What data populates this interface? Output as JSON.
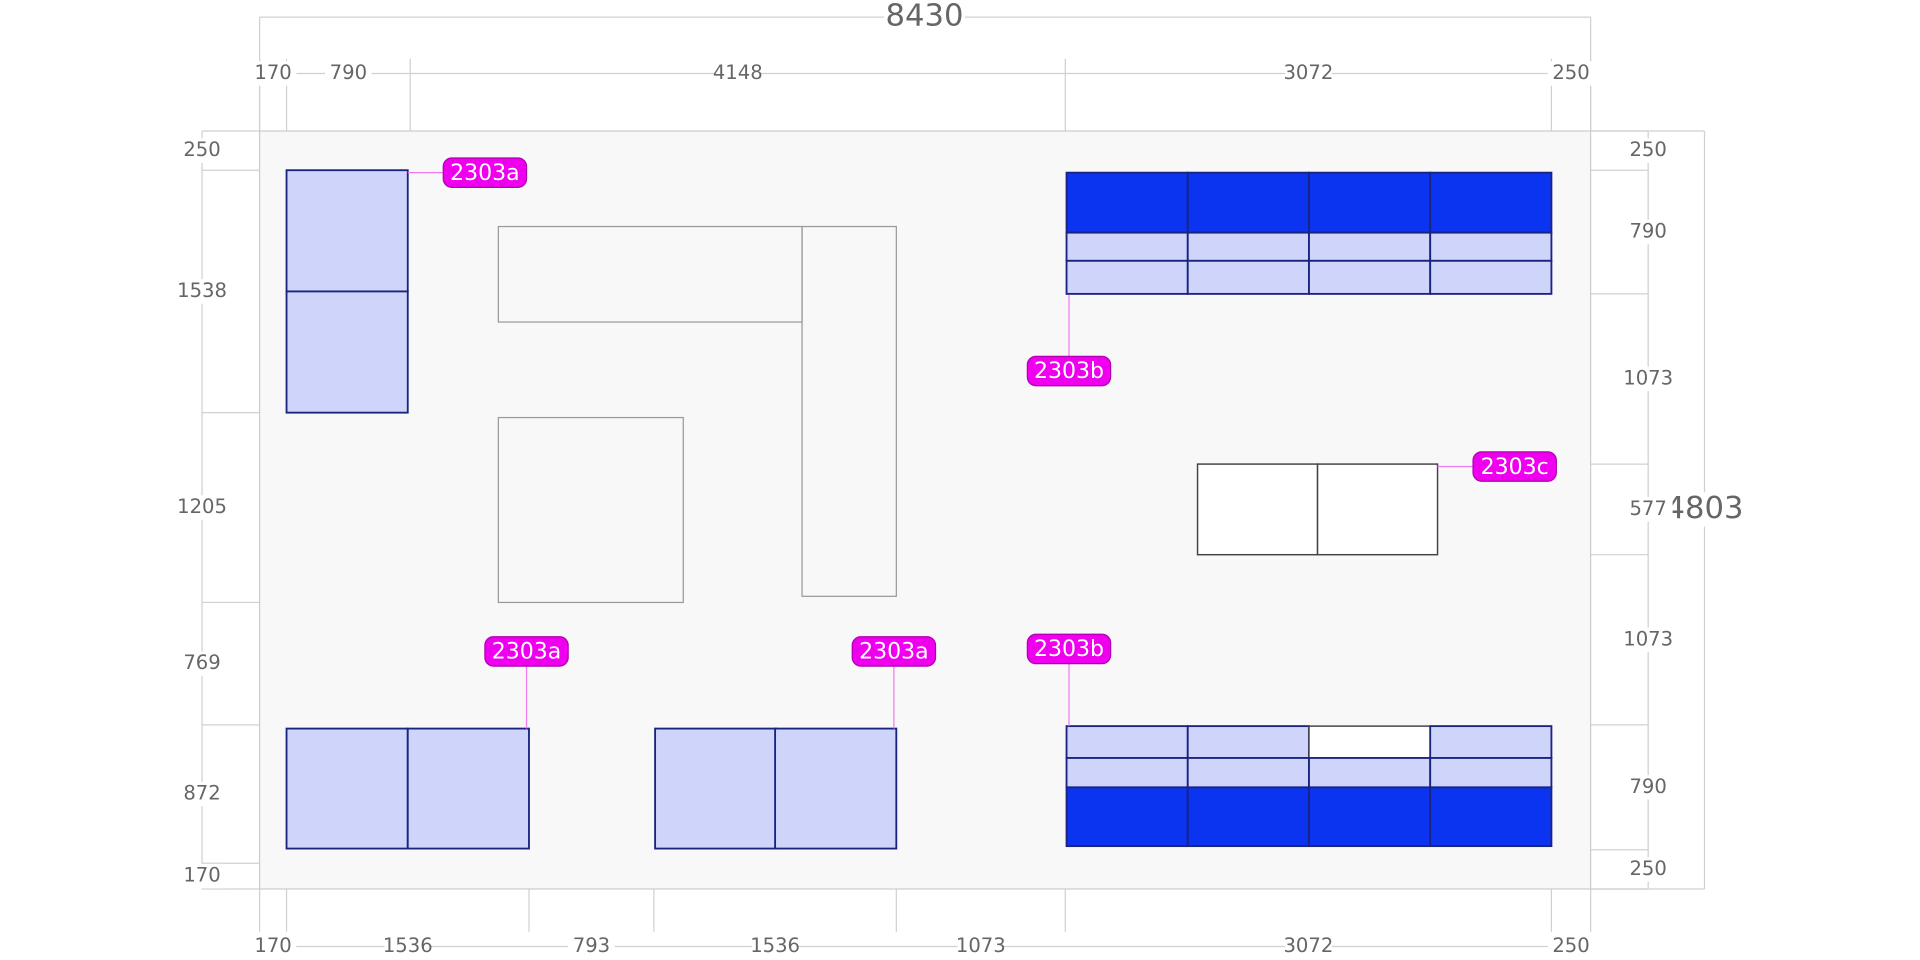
{
  "dimensions": {
    "overall_width": "8430",
    "overall_height": "4803",
    "top": [
      "170",
      "790",
      "4148",
      "3072",
      "250"
    ],
    "left": [
      "250",
      "1538",
      "1205",
      "769",
      "872",
      "170"
    ],
    "right": [
      "250",
      "790",
      "1073",
      "577",
      "1073",
      "790",
      "250"
    ],
    "bottom": [
      "170",
      "1536",
      "793",
      "1536",
      "1073",
      "3072",
      "250"
    ]
  },
  "tags": [
    "2303a",
    "2303b",
    "2303c",
    "2303a",
    "2303a",
    "2303b"
  ]
}
